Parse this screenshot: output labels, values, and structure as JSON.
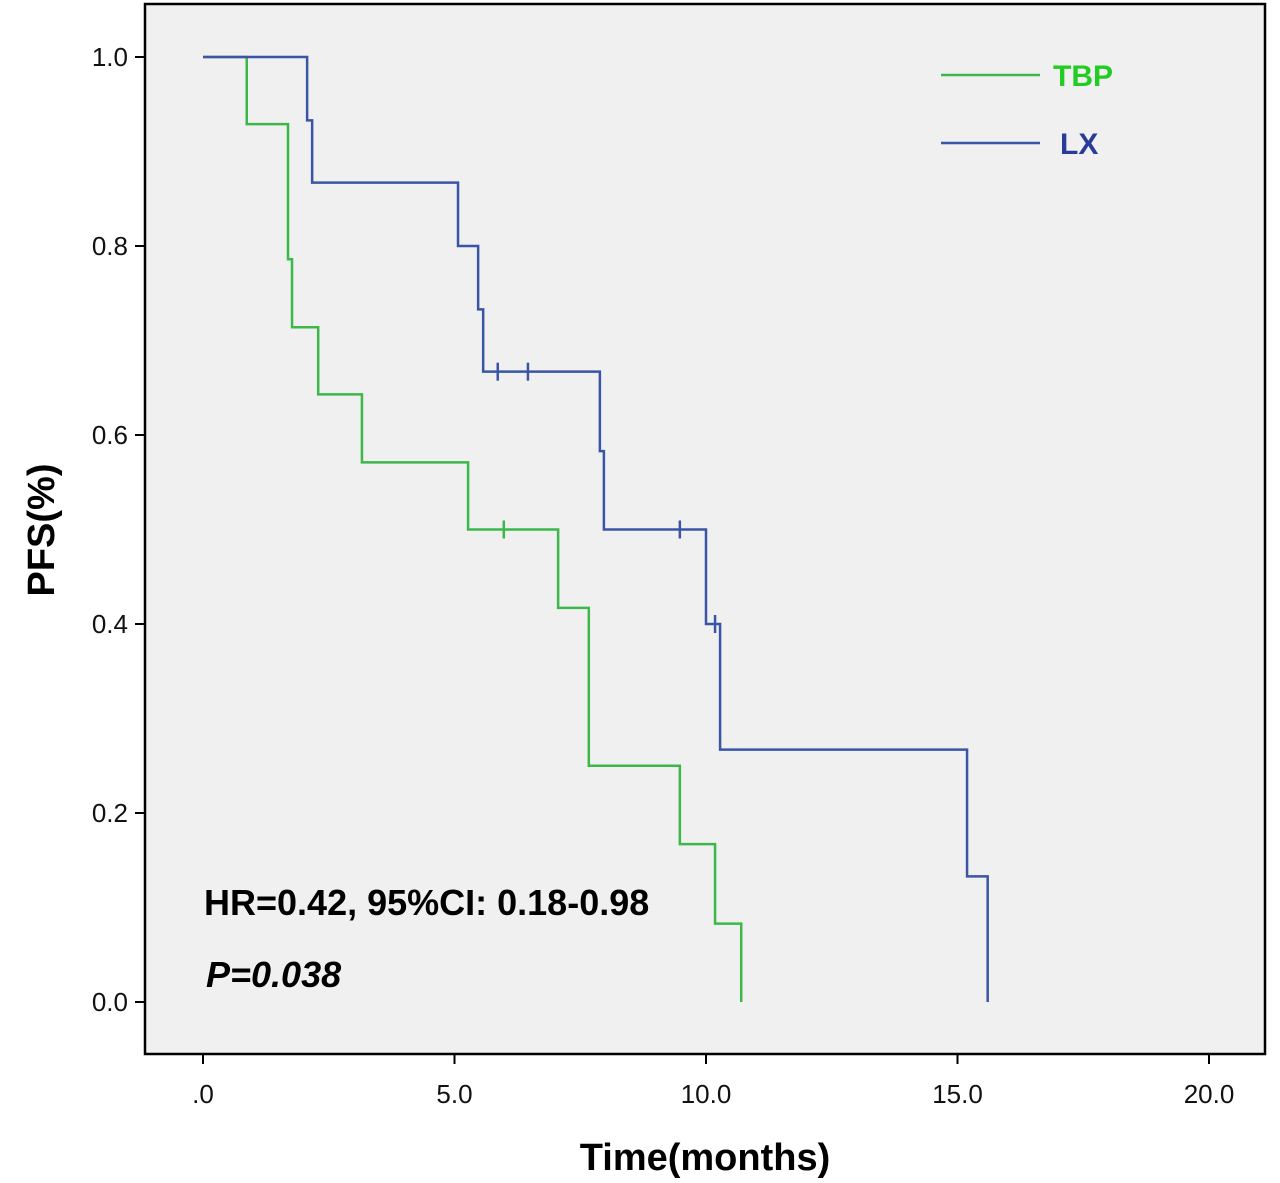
{
  "chart_data": {
    "type": "line",
    "subtype": "kaplan-meier step",
    "xlabel": "Time(months)",
    "ylabel": "PFS(%)",
    "xlim": [
      0,
      20
    ],
    "ylim": [
      0,
      1
    ],
    "xticks": [
      ".0",
      "5.0",
      "10.0",
      "15.0",
      "20.0"
    ],
    "xtick_values": [
      0,
      5,
      10,
      15,
      20
    ],
    "yticks": [
      "0.0",
      "0.2",
      "0.4",
      "0.6",
      "0.8",
      "1.0"
    ],
    "ytick_values": [
      0,
      0.2,
      0.4,
      0.6,
      0.8,
      1.0
    ],
    "grid": false,
    "legend_position": "top-right",
    "background": "#f0f0f0",
    "series": [
      {
        "name": "TBP",
        "color": "#3cb84a",
        "label_color": "#22cc22",
        "steps": [
          [
            0,
            1.0
          ],
          [
            0.87,
            0.929
          ],
          [
            1.69,
            0.786
          ],
          [
            1.77,
            0.714
          ],
          [
            2.29,
            0.643
          ],
          [
            3.16,
            0.571
          ],
          [
            5.27,
            0.5
          ],
          [
            7.06,
            0.417
          ],
          [
            7.67,
            0.25
          ],
          [
            9.48,
            0.167
          ],
          [
            10.18,
            0.083
          ],
          [
            10.7,
            0.0
          ]
        ],
        "censored": [
          [
            5.98,
            0.5
          ]
        ]
      },
      {
        "name": "LX",
        "color": "#3a55a5",
        "label_color": "#2a3a9a",
        "steps": [
          [
            0,
            1.0
          ],
          [
            2.07,
            0.933
          ],
          [
            2.17,
            0.867
          ],
          [
            5.07,
            0.8
          ],
          [
            5.47,
            0.733
          ],
          [
            5.57,
            0.667
          ],
          [
            7.89,
            0.583
          ],
          [
            7.97,
            0.5
          ],
          [
            10.0,
            0.4
          ],
          [
            10.28,
            0.267
          ],
          [
            15.19,
            0.133
          ],
          [
            15.6,
            0.0
          ]
        ],
        "censored": [
          [
            5.86,
            0.667
          ],
          [
            6.46,
            0.667
          ],
          [
            9.48,
            0.5
          ],
          [
            10.18,
            0.4
          ]
        ]
      }
    ],
    "annotations": {
      "hr": "HR=0.42, 95%CI: 0.18-0.98",
      "p": "P=0.038"
    }
  }
}
